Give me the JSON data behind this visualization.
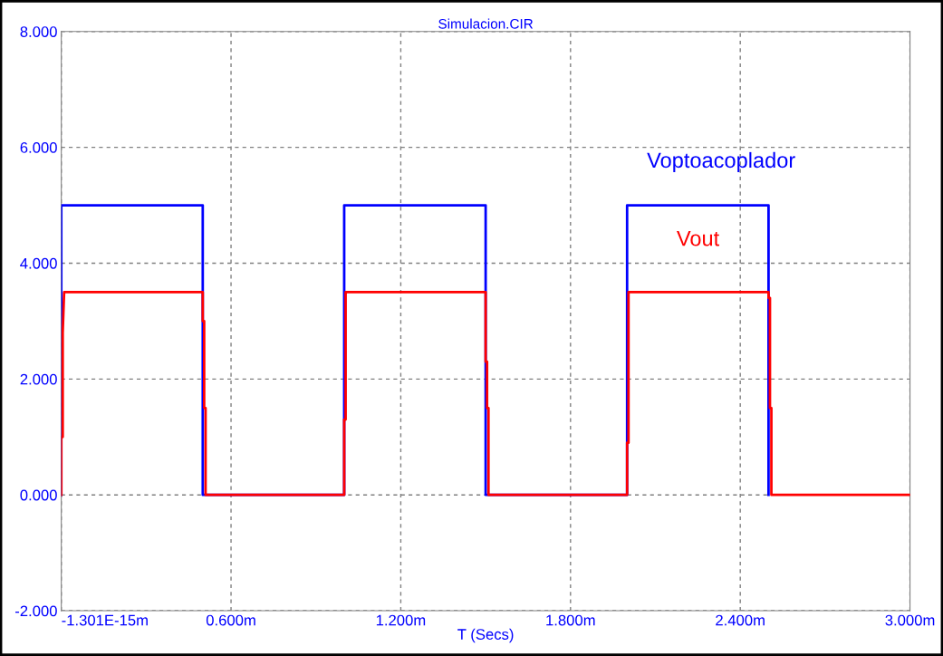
{
  "chart_data": {
    "type": "line",
    "title": "Simulacion.CIR",
    "xlabel": "T (Secs)",
    "xlim": [
      0,
      3
    ],
    "xticks": [
      {
        "value": 0,
        "label": "-1.301E-15m"
      },
      {
        "value": 0.6,
        "label": "0.600m"
      },
      {
        "value": 1.2,
        "label": "1.200m"
      },
      {
        "value": 1.8,
        "label": "1.800m"
      },
      {
        "value": 2.4,
        "label": "2.400m"
      },
      {
        "value": 3.0,
        "label": "3.000m"
      }
    ],
    "ylim": [
      -2,
      8
    ],
    "yticks": [
      {
        "value": -2,
        "label": "-2.000"
      },
      {
        "value": 0,
        "label": "0.000"
      },
      {
        "value": 2,
        "label": "2.000"
      },
      {
        "value": 4,
        "label": "4.000"
      },
      {
        "value": 6,
        "label": "6.000"
      },
      {
        "value": 8,
        "label": "8.000"
      }
    ],
    "grid": true,
    "line_style": "solid",
    "marker": "none",
    "series": [
      {
        "name": "Voptoacoplador",
        "color": "#0000ff",
        "x": [
          0,
          0,
          0.5,
          0.5,
          1.0,
          1.0,
          1.5,
          1.5,
          2.0,
          2.0,
          2.5,
          2.5
        ],
        "values": [
          0,
          5,
          5,
          0,
          0,
          5,
          5,
          0,
          0,
          5,
          5,
          0
        ]
      },
      {
        "name": "Vout",
        "color": "#ff0000",
        "x": [
          0,
          0,
          0.005,
          0.005,
          0.01,
          0.5,
          0.5,
          0.505,
          0.505,
          0.51,
          0.51,
          1.0,
          1.0,
          1.005,
          1.005,
          1.01,
          1.5,
          1.5,
          1.505,
          1.505,
          1.51,
          1.51,
          2.0,
          2.0,
          2.005,
          2.005,
          2.01,
          2.5,
          2.5,
          2.505,
          2.505,
          2.51,
          2.51,
          3.0
        ],
        "values": [
          0,
          1,
          1,
          2.8,
          3.5,
          3.5,
          3.0,
          3.0,
          1.5,
          1.5,
          0,
          0,
          1.3,
          1.3,
          3.5,
          3.5,
          3.5,
          2.3,
          2.3,
          1.5,
          1.5,
          0,
          0,
          0.9,
          0.9,
          3.5,
          3.5,
          3.5,
          3.4,
          3.4,
          1.5,
          1.5,
          0,
          0
        ]
      }
    ]
  }
}
